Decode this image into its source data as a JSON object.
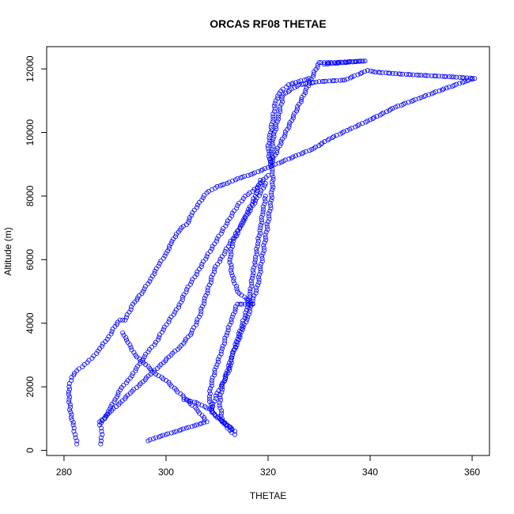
{
  "chart_data": {
    "type": "scatter",
    "title": "ORCAS RF08 THETAE",
    "xlabel": "THETAE",
    "ylabel": "Altitude (m)",
    "xlim": [
      276.6,
      363.4
    ],
    "ylim": [
      -160,
      12700
    ],
    "xticks": [
      280,
      300,
      320,
      340,
      360
    ],
    "yticks": [
      0,
      2000,
      4000,
      6000,
      8000,
      10000,
      12000
    ],
    "grid": false,
    "marker": "open-circle",
    "colors": {
      "points": "#0000ff",
      "axis": "#000000"
    },
    "series": [
      {
        "values": [
          [
            282.5,
            200
          ],
          [
            282.2,
            500
          ],
          [
            281.8,
            800
          ],
          [
            281.3,
            1200
          ],
          [
            281.0,
            1600
          ],
          [
            281.0,
            2000
          ],
          [
            281.5,
            2300
          ],
          [
            282.5,
            2500
          ],
          [
            284.0,
            2700
          ],
          [
            285.5,
            2900
          ],
          [
            287.0,
            3200
          ],
          [
            288.5,
            3500
          ],
          [
            290.0,
            3900
          ],
          [
            291.0,
            4100
          ],
          [
            292.0,
            4100
          ],
          [
            293.5,
            4600
          ],
          [
            295.5,
            5000
          ],
          [
            297.0,
            5400
          ],
          [
            298.5,
            5800
          ],
          [
            300.0,
            6200
          ],
          [
            301.0,
            6500
          ],
          [
            302.0,
            6800
          ],
          [
            303.0,
            7000
          ],
          [
            304.0,
            7100
          ],
          [
            305.0,
            7400
          ],
          [
            306.5,
            7800
          ],
          [
            308.0,
            8100
          ],
          [
            310.0,
            8300
          ],
          [
            312.0,
            8400
          ],
          [
            314.0,
            8550
          ],
          [
            317.0,
            8700
          ],
          [
            320.0,
            8900
          ],
          [
            323.0,
            9100
          ],
          [
            326.0,
            9300
          ],
          [
            329.0,
            9500
          ],
          [
            332.0,
            9800
          ],
          [
            336.0,
            10100
          ],
          [
            340.0,
            10400
          ],
          [
            345.0,
            10800
          ],
          [
            350.0,
            11100
          ],
          [
            355.0,
            11400
          ],
          [
            358.5,
            11600
          ],
          [
            360.5,
            11700
          ],
          [
            356.0,
            11750
          ],
          [
            350.0,
            11800
          ],
          [
            345.0,
            11850
          ],
          [
            341.0,
            11900
          ],
          [
            339.5,
            11950
          ],
          [
            335.0,
            11650
          ],
          [
            330.0,
            11600
          ],
          [
            326.0,
            11500
          ],
          [
            323.0,
            11200
          ],
          [
            322.0,
            10500
          ],
          [
            321.0,
            9800
          ],
          [
            320.5,
            9000
          ],
          [
            330.0,
            12200
          ],
          [
            333.0,
            12200
          ],
          [
            336.0,
            12230
          ],
          [
            339.0,
            12250
          ],
          [
            331.0,
            12150
          ]
        ]
      },
      {
        "values": [
          [
            287.2,
            200
          ],
          [
            287.5,
            500
          ],
          [
            287.0,
            800
          ],
          [
            288.0,
            1000
          ],
          [
            289.0,
            1300
          ],
          [
            290.0,
            1600
          ],
          [
            291.0,
            1900
          ],
          [
            292.5,
            2200
          ],
          [
            294.0,
            2500
          ],
          [
            295.0,
            2800
          ],
          [
            296.5,
            3100
          ],
          [
            298.0,
            3400
          ],
          [
            299.5,
            3800
          ],
          [
            301.0,
            4200
          ],
          [
            302.5,
            4500
          ],
          [
            303.5,
            4900
          ],
          [
            305.0,
            5300
          ],
          [
            306.5,
            5700
          ],
          [
            308.0,
            6100
          ],
          [
            309.5,
            6500
          ],
          [
            311.0,
            6900
          ],
          [
            312.5,
            7300
          ],
          [
            314.0,
            7700
          ],
          [
            315.5,
            8000
          ],
          [
            317.0,
            8150
          ],
          [
            318.5,
            8400
          ],
          [
            320.0,
            8650
          ]
        ]
      },
      {
        "values": [
          [
            296.5,
            300
          ],
          [
            298.0,
            400
          ],
          [
            300.0,
            500
          ],
          [
            302.0,
            600
          ],
          [
            304.0,
            700
          ],
          [
            306.0,
            800
          ],
          [
            308.0,
            900
          ],
          [
            306.0,
            1300
          ],
          [
            304.0,
            1600
          ],
          [
            302.0,
            1900
          ],
          [
            300.0,
            2200
          ],
          [
            298.0,
            2400
          ],
          [
            296.0,
            2700
          ],
          [
            294.0,
            3000
          ],
          [
            292.5,
            3400
          ],
          [
            291.5,
            3700
          ]
        ]
      },
      {
        "values": [
          [
            287.0,
            900
          ],
          [
            289.0,
            1200
          ],
          [
            291.0,
            1500
          ],
          [
            293.0,
            1800
          ],
          [
            295.0,
            2100
          ],
          [
            297.0,
            2400
          ],
          [
            299.0,
            2700
          ],
          [
            301.0,
            3000
          ],
          [
            303.0,
            3300
          ],
          [
            305.0,
            3700
          ],
          [
            306.5,
            4200
          ],
          [
            307.5,
            4700
          ],
          [
            308.5,
            5200
          ],
          [
            309.5,
            5700
          ],
          [
            311.0,
            6100
          ],
          [
            312.5,
            6500
          ],
          [
            314.0,
            6900
          ],
          [
            315.5,
            7300
          ],
          [
            317.0,
            7700
          ],
          [
            318.5,
            8100
          ],
          [
            319.5,
            8400
          ]
        ]
      },
      {
        "values": [
          [
            303.5,
            1600
          ],
          [
            306.0,
            1500
          ],
          [
            308.5,
            1300
          ],
          [
            310.5,
            1000
          ],
          [
            312.0,
            800
          ],
          [
            313.5,
            600
          ],
          [
            311.0,
            900
          ],
          [
            309.0,
            1200
          ],
          [
            308.5,
            1700
          ],
          [
            309.0,
            2200
          ],
          [
            310.0,
            2700
          ],
          [
            311.0,
            3200
          ],
          [
            312.0,
            3700
          ],
          [
            313.0,
            4200
          ],
          [
            314.0,
            4600
          ],
          [
            315.5,
            4600
          ],
          [
            317.0,
            4600
          ],
          [
            314.0,
            5000
          ],
          [
            313.0,
            5500
          ],
          [
            312.5,
            6000
          ],
          [
            313.0,
            6500
          ],
          [
            314.5,
            7000
          ],
          [
            316.0,
            7500
          ],
          [
            317.5,
            8000
          ],
          [
            318.5,
            8500
          ]
        ]
      },
      {
        "values": [
          [
            309.0,
            1300
          ],
          [
            310.0,
            1800
          ],
          [
            311.5,
            2200
          ],
          [
            312.5,
            2600
          ],
          [
            313.0,
            3000
          ],
          [
            314.0,
            3400
          ],
          [
            315.0,
            3800
          ],
          [
            316.0,
            4200
          ],
          [
            317.0,
            4700
          ],
          [
            318.0,
            5200
          ],
          [
            318.5,
            5700
          ],
          [
            319.0,
            6200
          ],
          [
            319.5,
            6700
          ],
          [
            320.0,
            7200
          ],
          [
            320.5,
            7700
          ],
          [
            320.8,
            8200
          ],
          [
            321.0,
            8600
          ],
          [
            320.5,
            9000
          ],
          [
            320.0,
            9500
          ],
          [
            320.5,
            10000
          ],
          [
            321.0,
            10500
          ],
          [
            321.5,
            11000
          ],
          [
            322.5,
            11300
          ],
          [
            324.0,
            11500
          ],
          [
            326.0,
            11600
          ],
          [
            328.0,
            11700
          ]
        ]
      },
      {
        "values": [
          [
            313.5,
            500
          ],
          [
            312.0,
            700
          ],
          [
            311.0,
            1000
          ],
          [
            310.5,
            1500
          ],
          [
            311.0,
            2000
          ],
          [
            312.0,
            2500
          ],
          [
            313.0,
            3000
          ],
          [
            314.0,
            3500
          ],
          [
            315.0,
            4000
          ],
          [
            316.0,
            4500
          ],
          [
            316.5,
            5000
          ],
          [
            317.0,
            5500
          ],
          [
            317.5,
            6000
          ],
          [
            318.0,
            6500
          ],
          [
            318.5,
            7000
          ],
          [
            319.0,
            7500
          ],
          [
            319.5,
            8000
          ]
        ]
      }
    ]
  }
}
